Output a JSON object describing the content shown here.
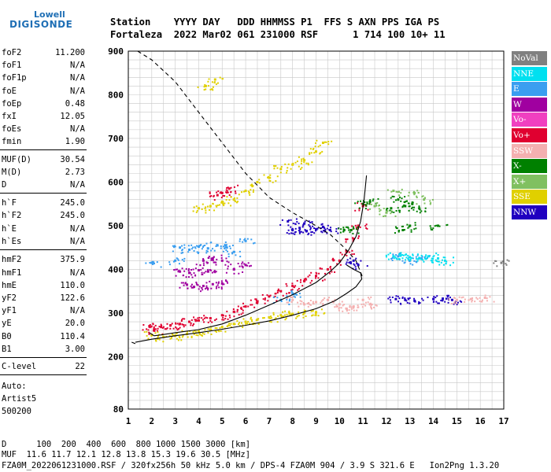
{
  "logo": {
    "line1": "Lowell",
    "line2": "DIGISONDE"
  },
  "header": {
    "line1": "Station    YYYY DAY   DDD HHMMSS P1  FFS S AXN PPS IGA PS",
    "line2": "Fortaleza  2022 Mar02 061 231000 RSF      1 714 100 10+ 11"
  },
  "params": [
    {
      "k": "foF2",
      "v": "11.200"
    },
    {
      "k": "foF1",
      "v": "N/A"
    },
    {
      "k": "foF1p",
      "v": "N/A"
    },
    {
      "k": "foE",
      "v": "N/A"
    },
    {
      "k": "foEp",
      "v": "0.48"
    },
    {
      "k": "fxI",
      "v": "12.05"
    },
    {
      "k": "foEs",
      "v": "N/A"
    },
    {
      "k": "fmin",
      "v": "1.90"
    },
    {
      "k": "MUF(D)",
      "v": "30.54"
    },
    {
      "k": "M(D)",
      "v": "2.73"
    },
    {
      "k": "D",
      "v": "N/A"
    },
    {
      "k": "h`F",
      "v": "245.0"
    },
    {
      "k": "h`F2",
      "v": "245.0"
    },
    {
      "k": "h`E",
      "v": "N/A"
    },
    {
      "k": "h`Es",
      "v": "N/A"
    },
    {
      "k": "hmF2",
      "v": "375.9"
    },
    {
      "k": "hmF1",
      "v": "N/A"
    },
    {
      "k": "hmE",
      "v": "110.0"
    },
    {
      "k": "yF2",
      "v": "122.6"
    },
    {
      "k": "yF1",
      "v": "N/A"
    },
    {
      "k": "yE",
      "v": "20.0"
    },
    {
      "k": "B0",
      "v": "110.4"
    },
    {
      "k": "B1",
      "v": "3.00"
    },
    {
      "k": "C-level",
      "v": "22"
    }
  ],
  "auto": [
    "Auto:",
    "Artist5",
    "500200"
  ],
  "footer": {
    "d_line": "D      100  200  400  600  800 1000 1500 3000 [km]",
    "muf_line": "MUF  11.6 11.7 12.1 12.8 13.8 15.3 19.6 30.5 [MHz]",
    "info_line": "FZA0M_2022061231000.RSF / 320fx256h 50 kHz 5.0 km / DPS-4 FZA0M 904 / 3.9 S 321.6 E   Ion2Png 1.3.20"
  },
  "legend": [
    {
      "label": "NoVal",
      "color": "#808080"
    },
    {
      "label": "NNE",
      "color": "#00e0f0"
    },
    {
      "label": "E",
      "color": "#3a9ef0"
    },
    {
      "label": "W",
      "color": "#a000a0"
    },
    {
      "label": "Vo-",
      "color": "#f040c0"
    },
    {
      "label": "Vo+",
      "color": "#e00030"
    },
    {
      "label": "SSW",
      "color": "#f4b0b0"
    },
    {
      "label": "X-",
      "color": "#008000"
    },
    {
      "label": "X+",
      "color": "#80c060"
    },
    {
      "label": "SSE",
      "color": "#e0d000"
    },
    {
      "label": "NNW",
      "color": "#2000c0"
    }
  ],
  "chart_data": {
    "type": "scatter",
    "title": "",
    "xlabel": "",
    "ylabel": "",
    "xlim": [
      1,
      17
    ],
    "ylim": [
      80,
      900
    ],
    "x_ticks": [
      1,
      2,
      3,
      4,
      5,
      6,
      7,
      8,
      9,
      10,
      11,
      12,
      13,
      14,
      15,
      16,
      17
    ],
    "y_ticks": [
      80,
      200,
      300,
      400,
      500,
      600,
      700,
      800,
      900
    ],
    "grid": true,
    "legend_position": "right",
    "series": [
      {
        "name": "Vo+",
        "color": "#e00030",
        "points": [
          [
            1.9,
            270
          ],
          [
            2.1,
            262
          ],
          [
            2.4,
            268
          ],
          [
            2.8,
            272
          ],
          [
            3.2,
            275
          ],
          [
            3.6,
            280
          ],
          [
            4.0,
            283
          ],
          [
            4.5,
            288
          ],
          [
            5.0,
            295
          ],
          [
            5.5,
            303
          ],
          [
            6.0,
            315
          ],
          [
            6.5,
            325
          ],
          [
            7.0,
            338
          ],
          [
            7.5,
            350
          ],
          [
            8.0,
            362
          ],
          [
            8.5,
            373
          ],
          [
            9.0,
            385
          ],
          [
            9.5,
            400
          ],
          [
            10.0,
            420
          ],
          [
            10.3,
            440
          ],
          [
            10.6,
            470
          ],
          [
            10.8,
            500
          ],
          [
            11.0,
            545
          ],
          [
            4.8,
            570
          ],
          [
            5.0,
            575
          ],
          [
            5.3,
            585
          ]
        ]
      },
      {
        "name": "W",
        "color": "#a000a0",
        "points": [
          [
            3.5,
            365
          ],
          [
            3.8,
            360
          ],
          [
            4.2,
            362
          ],
          [
            4.6,
            366
          ],
          [
            5.0,
            368
          ],
          [
            3.2,
            395
          ],
          [
            3.6,
            392
          ],
          [
            4.0,
            398
          ],
          [
            4.4,
            395
          ],
          [
            5.5,
            400
          ],
          [
            6.0,
            410
          ],
          [
            4.2,
            420
          ],
          [
            4.6,
            425
          ],
          [
            5.0,
            420
          ]
        ]
      },
      {
        "name": "NNW",
        "color": "#2000c0",
        "points": [
          [
            8.0,
            490
          ],
          [
            8.3,
            495
          ],
          [
            8.6,
            488
          ],
          [
            9.0,
            492
          ],
          [
            9.3,
            497
          ],
          [
            9.6,
            490
          ],
          [
            7.8,
            510
          ],
          [
            8.5,
            505
          ],
          [
            12.4,
            332
          ],
          [
            12.8,
            330
          ],
          [
            13.2,
            328
          ],
          [
            14.0,
            332
          ],
          [
            14.4,
            333
          ],
          [
            14.8,
            330
          ],
          [
            10.6,
            420
          ],
          [
            10.8,
            410
          ]
        ]
      },
      {
        "name": "E",
        "color": "#3a9ef0",
        "points": [
          [
            3.2,
            450
          ],
          [
            3.6,
            445
          ],
          [
            4.0,
            452
          ],
          [
            4.4,
            448
          ],
          [
            4.8,
            455
          ],
          [
            5.2,
            450
          ],
          [
            5.5,
            440
          ],
          [
            6.0,
            465
          ],
          [
            2.0,
            415
          ],
          [
            3.0,
            420
          ],
          [
            12.5,
            430
          ],
          [
            13.0,
            420
          ],
          [
            13.5,
            425
          ],
          [
            7.5,
            330
          ],
          [
            8.0,
            345
          ]
        ]
      },
      {
        "name": "NNE",
        "color": "#00e0f0",
        "points": [
          [
            12.3,
            430
          ],
          [
            12.6,
            432
          ],
          [
            13.0,
            428
          ],
          [
            13.4,
            426
          ],
          [
            13.8,
            430
          ],
          [
            14.2,
            425
          ],
          [
            14.5,
            420
          ]
        ]
      },
      {
        "name": "X-",
        "color": "#008000",
        "points": [
          [
            11.0,
            550
          ],
          [
            11.3,
            555
          ],
          [
            12.2,
            540
          ],
          [
            12.5,
            560
          ],
          [
            12.8,
            545
          ],
          [
            13.1,
            550
          ],
          [
            13.4,
            540
          ],
          [
            13.0,
            500
          ],
          [
            12.7,
            490
          ],
          [
            14.2,
            500
          ],
          [
            10.2,
            490
          ],
          [
            10.5,
            490
          ]
        ]
      },
      {
        "name": "X+",
        "color": "#80c060",
        "points": [
          [
            11.5,
            545
          ],
          [
            12.0,
            530
          ],
          [
            12.3,
            580
          ],
          [
            13.2,
            575
          ],
          [
            13.6,
            560
          ]
        ]
      },
      {
        "name": "SSE",
        "color": "#e0d000",
        "points": [
          [
            2.0,
            250
          ],
          [
            2.5,
            245
          ],
          [
            3.0,
            248
          ],
          [
            3.5,
            252
          ],
          [
            4.0,
            258
          ],
          [
            4.5,
            262
          ],
          [
            5.0,
            268
          ],
          [
            5.5,
            275
          ],
          [
            6.0,
            280
          ],
          [
            6.5,
            285
          ],
          [
            7.0,
            290
          ],
          [
            7.5,
            295
          ],
          [
            8.0,
            298
          ],
          [
            8.5,
            300
          ],
          [
            9.0,
            302
          ],
          [
            4.0,
            540
          ],
          [
            4.5,
            545
          ],
          [
            5.0,
            555
          ],
          [
            5.5,
            560
          ],
          [
            6.0,
            580
          ],
          [
            6.5,
            600
          ],
          [
            7.0,
            610
          ],
          [
            7.5,
            630
          ],
          [
            8.0,
            640
          ],
          [
            8.5,
            650
          ],
          [
            9.0,
            670
          ],
          [
            9.3,
            690
          ],
          [
            4.3,
            820
          ],
          [
            4.7,
            835
          ]
        ]
      },
      {
        "name": "SSW",
        "color": "#f4b0b0",
        "points": [
          [
            8.0,
            330
          ],
          [
            8.5,
            320
          ],
          [
            9.0,
            325
          ],
          [
            9.5,
            330
          ],
          [
            10.0,
            320
          ],
          [
            10.3,
            310
          ],
          [
            10.6,
            315
          ],
          [
            11.0,
            330
          ],
          [
            11.3,
            320
          ],
          [
            15.0,
            330
          ],
          [
            15.6,
            332
          ],
          [
            16.2,
            335
          ]
        ]
      },
      {
        "name": "NoVal",
        "color": "#808080",
        "points": [
          [
            16.9,
            415
          ]
        ]
      }
    ],
    "curves": [
      {
        "name": "profile",
        "style": "solid",
        "points": [
          [
            1.9,
            255
          ],
          [
            2.1,
            248
          ],
          [
            2.4,
            250
          ],
          [
            3.0,
            255
          ],
          [
            4.0,
            262
          ],
          [
            5.0,
            275
          ],
          [
            6.0,
            295
          ],
          [
            7.0,
            318
          ],
          [
            8.0,
            342
          ],
          [
            9.0,
            370
          ],
          [
            9.6,
            395
          ],
          [
            10.0,
            415
          ],
          [
            10.4,
            445
          ],
          [
            10.7,
            475
          ],
          [
            10.9,
            510
          ],
          [
            11.05,
            560
          ],
          [
            11.15,
            615
          ]
        ]
      },
      {
        "name": "profile-lower",
        "style": "solid",
        "points": [
          [
            1.3,
            233
          ],
          [
            2.0,
            240
          ],
          [
            3.0,
            248
          ],
          [
            4.0,
            255
          ],
          [
            5.0,
            263
          ],
          [
            6.0,
            272
          ],
          [
            7.0,
            282
          ],
          [
            8.0,
            295
          ],
          [
            9.0,
            310
          ],
          [
            9.8,
            328
          ],
          [
            10.3,
            345
          ],
          [
            10.7,
            360
          ],
          [
            10.95,
            378
          ],
          [
            10.9,
            392
          ],
          [
            10.6,
            400
          ],
          [
            10.3,
            410
          ]
        ]
      },
      {
        "name": "MUF",
        "style": "dashed",
        "points": [
          [
            1.3,
            230
          ],
          [
            1.05,
            235
          ]
        ]
      },
      {
        "name": "MUF-upper",
        "style": "dashed",
        "points": [
          [
            1.4,
            900
          ],
          [
            2.0,
            880
          ],
          [
            3.0,
            830
          ],
          [
            4.0,
            760
          ],
          [
            5.0,
            690
          ],
          [
            6.0,
            620
          ],
          [
            7.0,
            565
          ],
          [
            8.0,
            530
          ],
          [
            9.0,
            500
          ],
          [
            9.6,
            480
          ],
          [
            10.2,
            450
          ],
          [
            10.7,
            420
          ],
          [
            11.0,
            380
          ]
        ]
      }
    ]
  }
}
